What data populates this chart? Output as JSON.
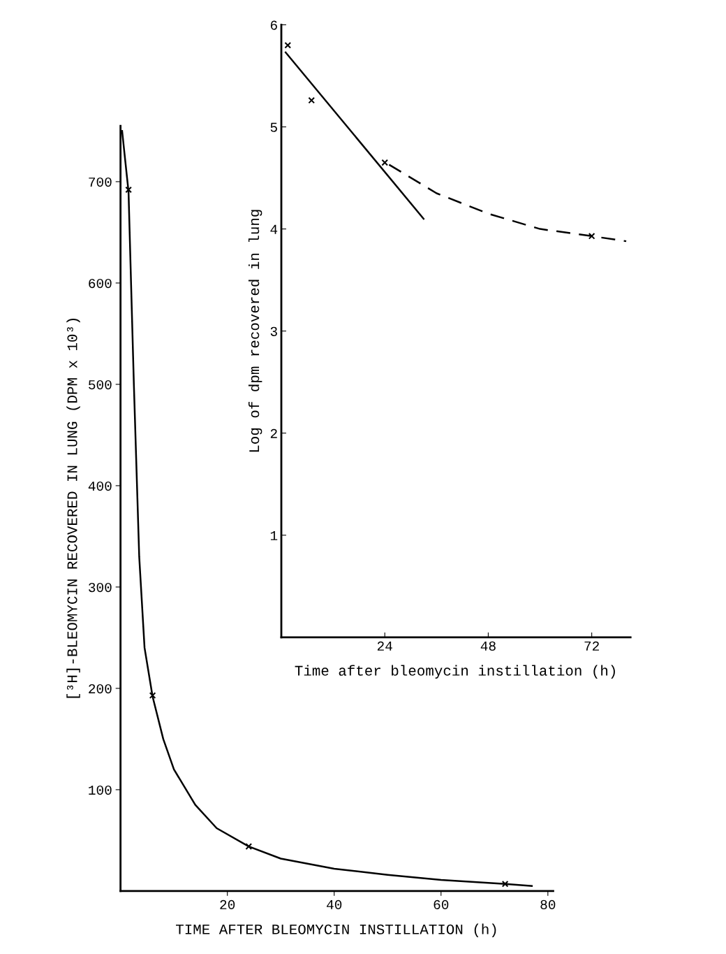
{
  "chart_data": [
    {
      "type": "line",
      "xlabel": "TIME AFTER BLEOMYCIN INSTILLATION (h)",
      "ylabel": "[³H]-BLEOMYCIN RECOVERED IN LUNG (DPM x 10³)",
      "xlim": [
        0,
        81
      ],
      "ylim": [
        0,
        755
      ],
      "xticks": [
        20,
        40,
        60,
        80
      ],
      "yticks": [
        100,
        200,
        300,
        400,
        500,
        600,
        700
      ],
      "grid": false,
      "legend": false,
      "series": [
        {
          "type": "scatter",
          "color": "#000000",
          "marker": "cross",
          "x": [
            1.5,
            6,
            24,
            72
          ],
          "values": [
            692,
            193,
            44,
            7
          ]
        },
        {
          "type": "line",
          "color": "#000000",
          "marker": "none",
          "line_style": "solid",
          "x": [
            0.3,
            1.5,
            2.5,
            3.5,
            4.5,
            6,
            8,
            10,
            14,
            18,
            24,
            30,
            40,
            50,
            60,
            72,
            77
          ],
          "values": [
            750,
            690,
            500,
            330,
            240,
            192,
            150,
            120,
            85,
            62,
            44,
            32,
            22,
            16,
            11,
            7,
            5
          ]
        }
      ]
    },
    {
      "type": "line",
      "xlabel": "Time after bleomycin instillation (h)",
      "ylabel": "Log of dpm recovered in lung",
      "xlim": [
        0,
        81
      ],
      "ylim": [
        0,
        6
      ],
      "xticks": [
        24,
        48,
        72
      ],
      "yticks": [
        1,
        2,
        3,
        4,
        5,
        6
      ],
      "grid": false,
      "legend": false,
      "series": [
        {
          "type": "scatter",
          "color": "#000000",
          "marker": "cross",
          "x": [
            1.5,
            7,
            24,
            72
          ],
          "values": [
            5.8,
            5.26,
            4.65,
            3.93
          ]
        },
        {
          "type": "line",
          "color": "#000000",
          "marker": "none",
          "line_style": "solid",
          "x": [
            1,
            33
          ],
          "values": [
            5.73,
            4.1
          ]
        },
        {
          "type": "line",
          "color": "#000000",
          "marker": "none",
          "line_style": "dashed",
          "x": [
            25,
            36,
            48,
            60,
            72,
            80
          ],
          "values": [
            4.63,
            4.35,
            4.15,
            4.0,
            3.93,
            3.88
          ]
        }
      ]
    }
  ]
}
